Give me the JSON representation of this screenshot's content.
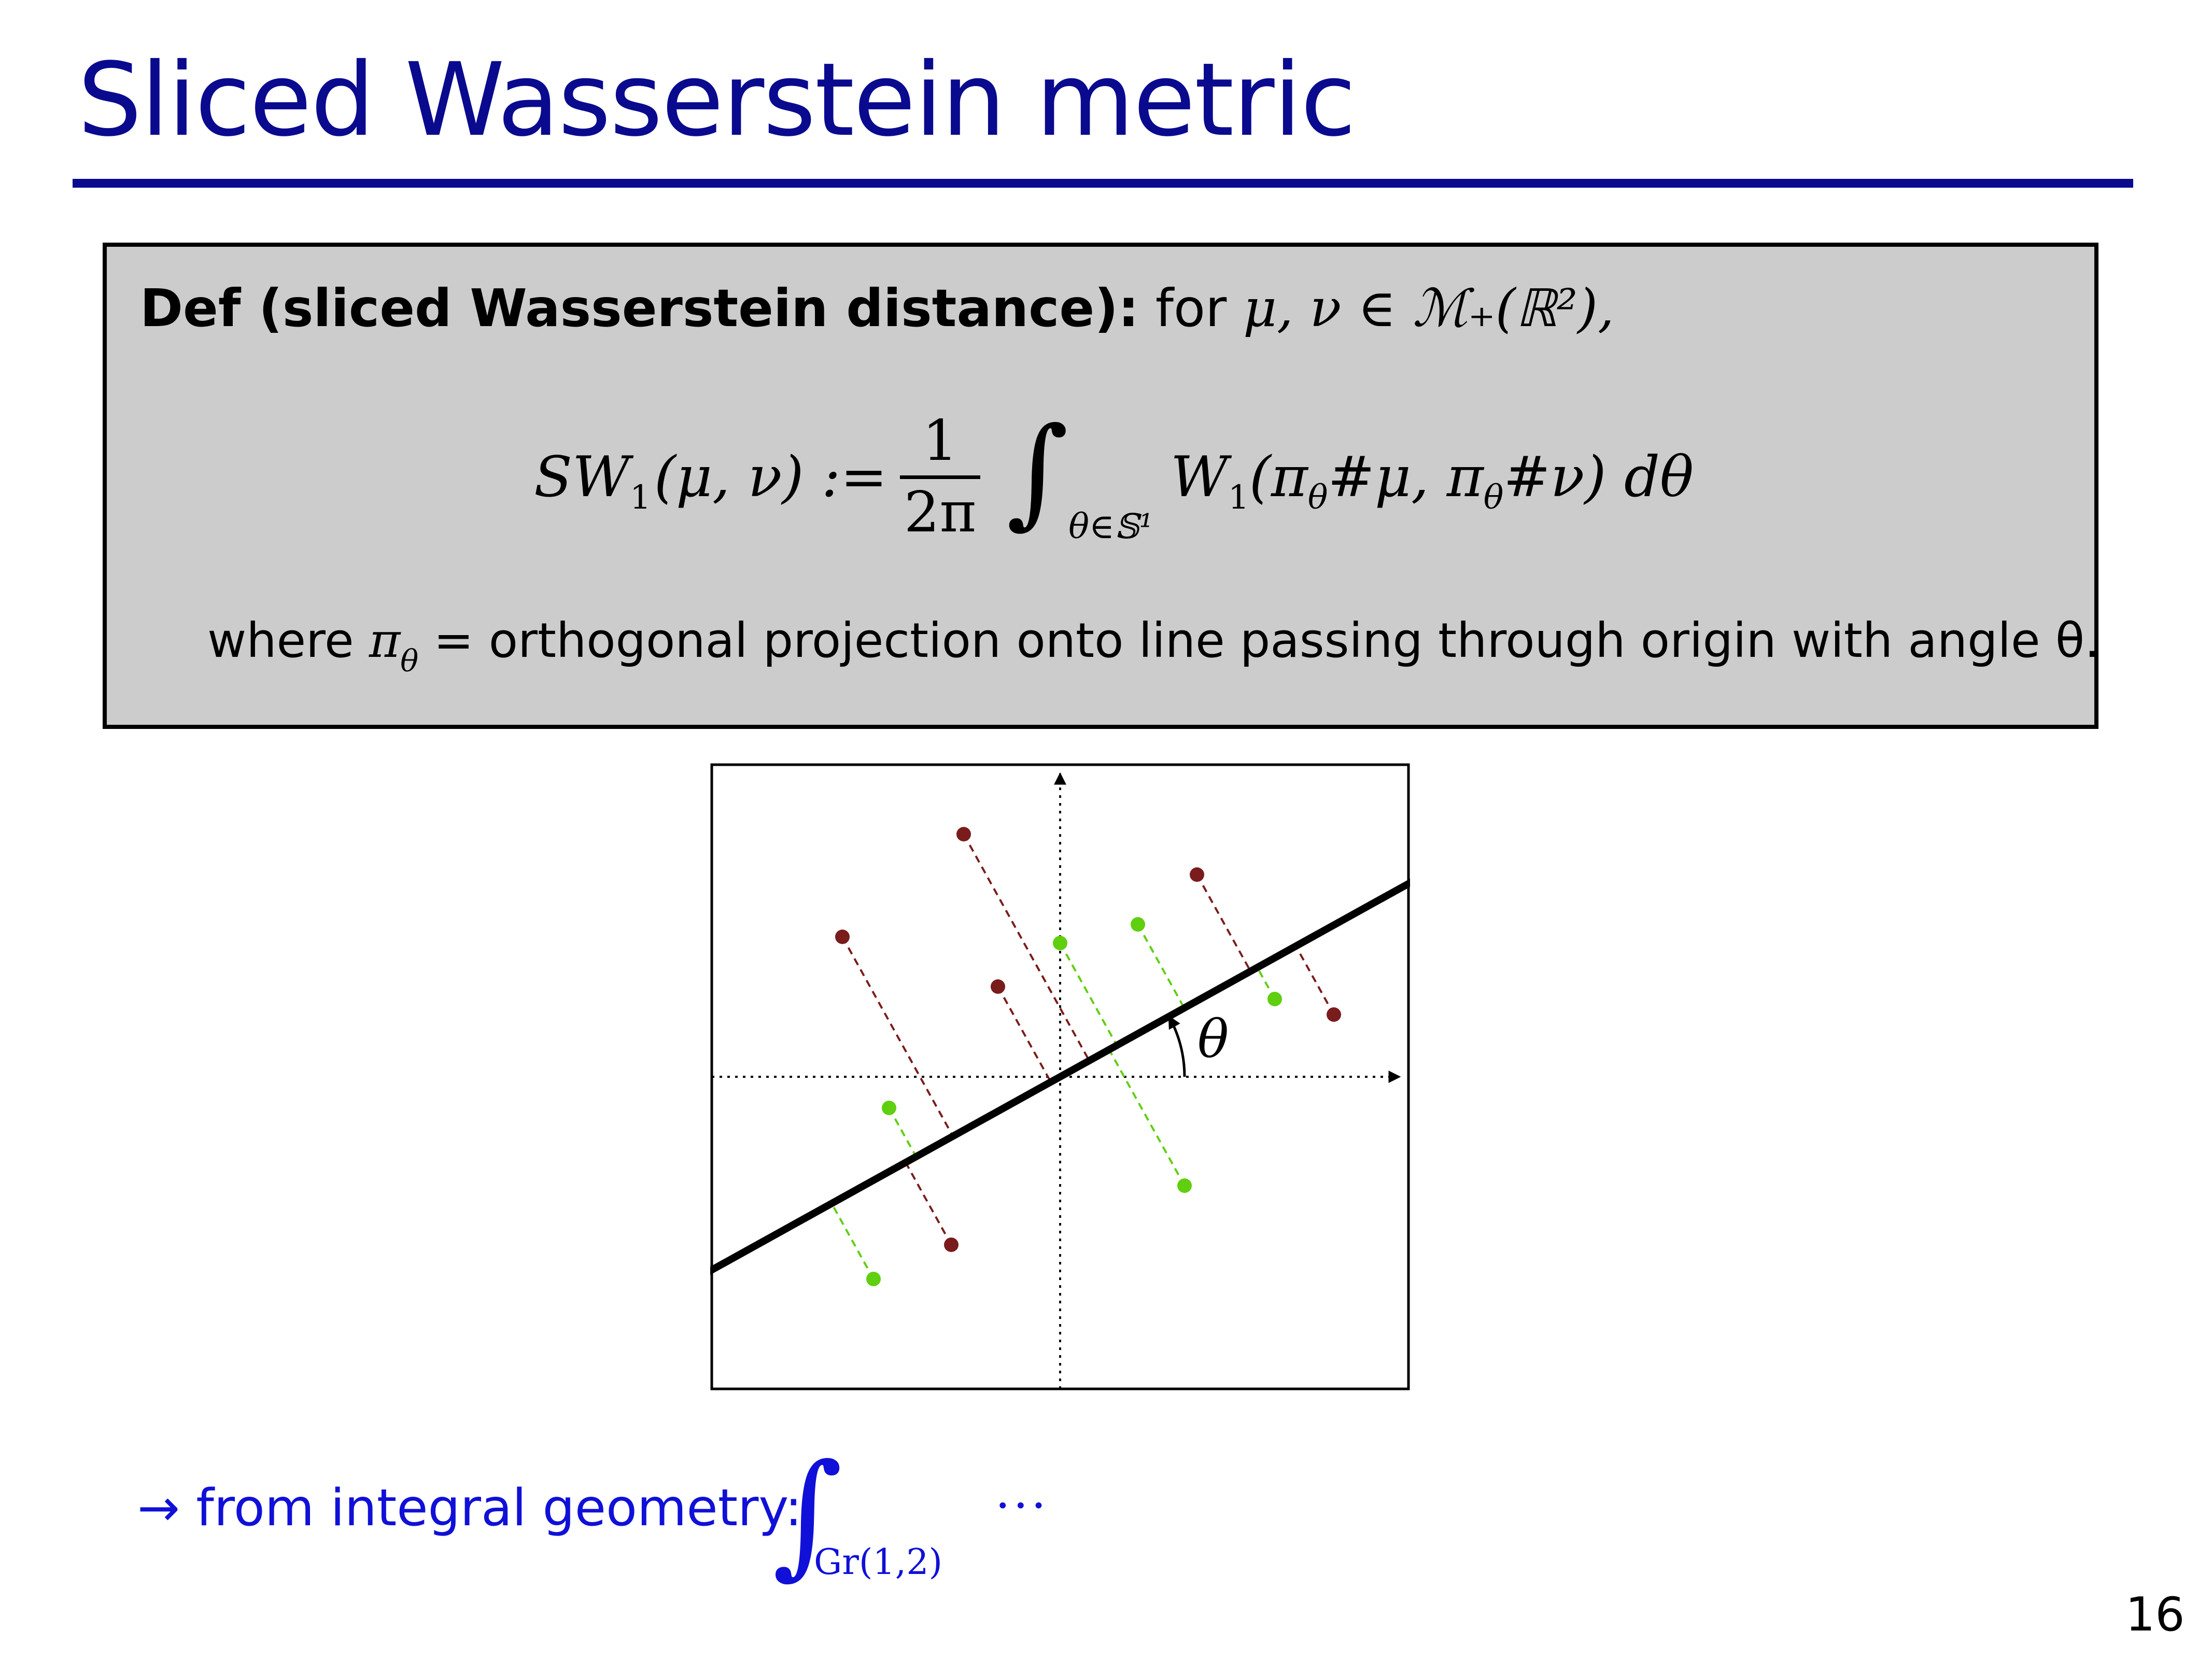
{
  "slide": {
    "title": "Sliced Wasserstein metric",
    "page_number": "16"
  },
  "definition": {
    "heading": "Def (sliced Wasserstein distance):",
    "intro_word": "for",
    "intro_math": "μ, ν ∈ ℳ₊(ℝ²),",
    "formula": {
      "lhs": "SW",
      "lhs_sub": "1",
      "lhs_args": "(μ, ν) :=",
      "frac_num": "1",
      "frac_den": "2π",
      "integral_symbol": "∫",
      "integral_sub": "θ∈𝕊¹",
      "integrand_W": "W",
      "integrand_W_sub": "1",
      "integrand_open": "(π",
      "integrand_pi_sub": "θ",
      "integrand_mid": "#μ, π",
      "integrand_pi_sub2": "θ",
      "integrand_close": "#ν) dθ"
    },
    "where": {
      "word": "where",
      "pi": "π",
      "pi_sub": "θ",
      "rest": " = orthogonal projection onto line passing through origin with angle θ."
    }
  },
  "figure": {
    "angle_label": "θ",
    "colors": {
      "red_points": "#7a1c1c",
      "green_points": "#5fcf10",
      "line": "#000000"
    },
    "red_points": [
      [
        -0.31,
        0.78
      ],
      [
        -0.7,
        0.45
      ],
      [
        -0.2,
        0.29
      ],
      [
        0.44,
        0.65
      ],
      [
        0.88,
        0.2
      ],
      [
        -0.35,
        -0.54
      ]
    ],
    "green_points": [
      [
        0.0,
        0.43
      ],
      [
        0.25,
        0.49
      ],
      [
        0.69,
        0.25
      ],
      [
        -0.55,
        -0.1
      ],
      [
        0.4,
        -0.35
      ],
      [
        -0.6,
        -0.65
      ]
    ],
    "projection_angle_deg": 29,
    "axes": "dotted, with arrows"
  },
  "bottom": {
    "arrow": "→",
    "text": "from integral geometry:",
    "integral_symbol": "∫",
    "integral_sub": "Gr(1,2)",
    "dots": "···"
  }
}
